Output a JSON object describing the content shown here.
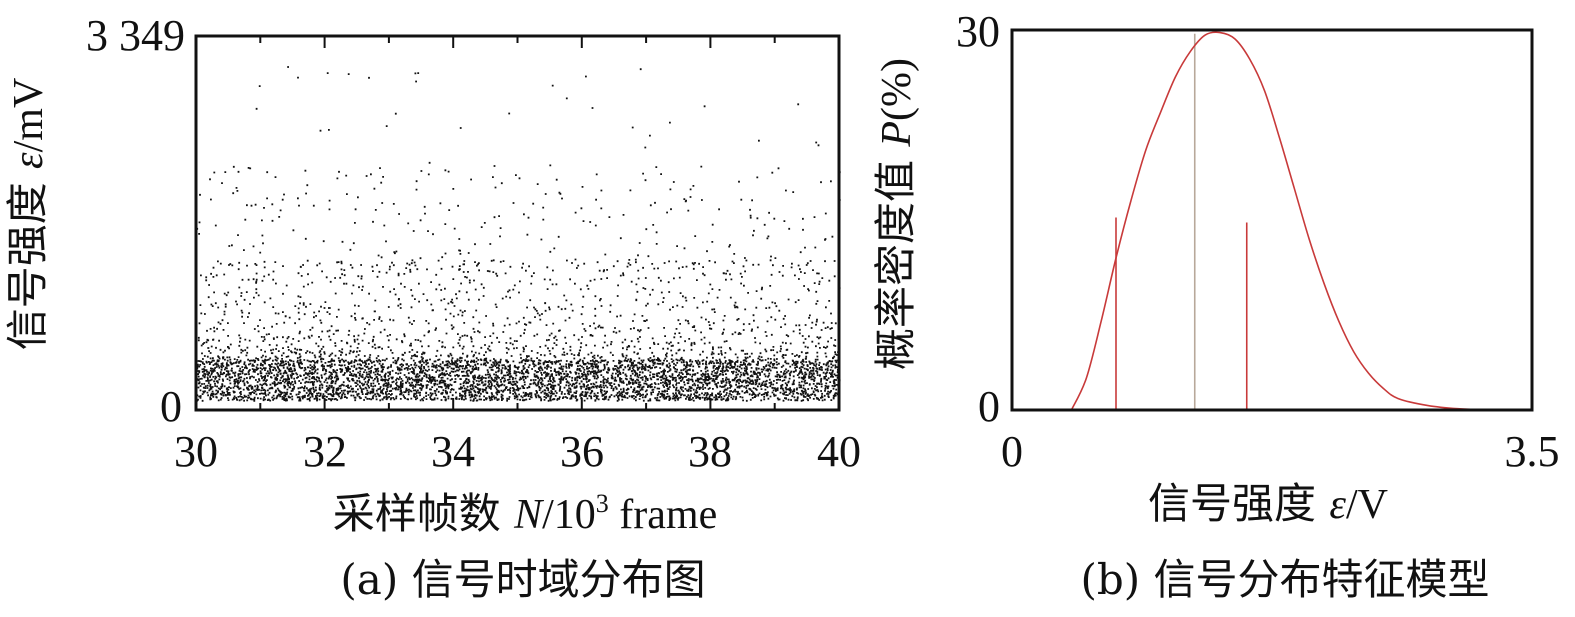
{
  "chart_data": [
    {
      "id": "a",
      "type": "scatter",
      "caption": "(a) 信号时域分布图",
      "xlabel_text": "采样帧数 ",
      "xlabel_var": "N",
      "xlabel_unit_pre": "/10",
      "xlabel_unit_exp": "3",
      "xlabel_unit_post": " frame",
      "ylabel_text": "信号强度 ",
      "ylabel_var": "ε",
      "ylabel_unit": "/mV",
      "xlim": [
        30,
        40
      ],
      "ylim": [
        0,
        3349
      ],
      "x_ticks": [
        "30",
        "32",
        "34",
        "36",
        "38",
        "40"
      ],
      "y_ticks": [
        "0",
        "3 349"
      ],
      "grid": false,
      "point_count": 6000,
      "dense_band_mV": [
        150,
        450
      ],
      "series_color": "#111111"
    },
    {
      "id": "b",
      "type": "line",
      "caption": "(b) 信号分布特征模型",
      "xlabel_text": "信号强度 ",
      "xlabel_var": "ε",
      "xlabel_unit": "/V",
      "ylabel_text": "概率密度值 ",
      "ylabel_var": "P",
      "ylabel_unit": "(%)",
      "xlim": [
        0,
        3.5
      ],
      "ylim": [
        0,
        30
      ],
      "x_ticks": [
        "0",
        "3.5"
      ],
      "y_ticks": [
        "0",
        "30"
      ],
      "grid": false,
      "curve": {
        "x": [
          0.4,
          0.5,
          0.6,
          0.7,
          0.8,
          0.9,
          1.0,
          1.1,
          1.2,
          1.3,
          1.4,
          1.5,
          1.6,
          1.7,
          1.8,
          1.9,
          2.0,
          2.1,
          2.2,
          2.3,
          2.4,
          2.5,
          2.6,
          2.8,
          3.0,
          3.2,
          3.3
        ],
        "y": [
          0,
          2.5,
          7,
          12,
          16.5,
          20.5,
          23.5,
          26.3,
          28.3,
          29.6,
          29.8,
          29.3,
          27.7,
          25.2,
          21.5,
          17.5,
          13.5,
          10,
          7,
          4.6,
          2.9,
          1.7,
          0.9,
          0.35,
          0.1,
          0.02,
          0
        ]
      },
      "markers": [
        {
          "x": 0.7,
          "y": 15.2,
          "color": "#c83a3a"
        },
        {
          "x": 1.23,
          "y": 29.7,
          "color": "#b8a89a"
        },
        {
          "x": 1.58,
          "y": 14.8,
          "color": "#c83a3a"
        }
      ],
      "curve_color": "#c83a3a"
    }
  ]
}
